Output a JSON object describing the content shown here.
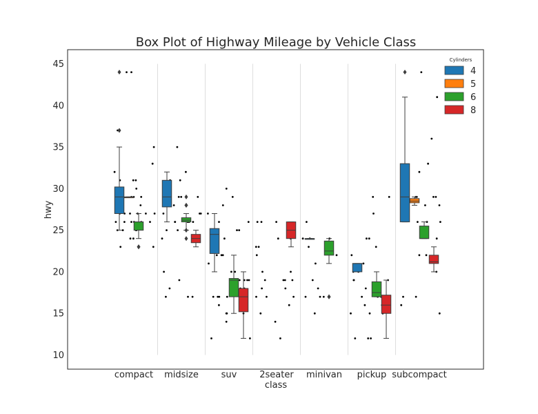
{
  "chart_data": {
    "type": "box",
    "title": "Box Plot of Highway Mileage by Vehicle Class",
    "xlabel": "class",
    "ylabel": "hwy",
    "ylim": [
      8.3,
      46.7
    ],
    "yticks": [
      10,
      15,
      20,
      25,
      30,
      35,
      40,
      45
    ],
    "categories": [
      "compact",
      "midsize",
      "suv",
      "2seater",
      "minivan",
      "pickup",
      "subcompact"
    ],
    "grid": "vertical separators between classes",
    "legend": {
      "title": "Cylinders",
      "placement": "top-right",
      "entries": [
        "4",
        "5",
        "6",
        "8"
      ]
    },
    "colors": {
      "4": "#1f77b4",
      "5": "#ff7f0e",
      "6": "#2ca02c",
      "8": "#d62728",
      "points": "#000000",
      "separator": "#dddddd",
      "frame": "#262626"
    },
    "boxes": [
      {
        "category": "compact",
        "cylinders": "4",
        "whisker_low": 25,
        "q1": 27,
        "median": 29,
        "q3": 30.2,
        "whisker_high": 35,
        "outliers": [
          37,
          44
        ]
      },
      {
        "category": "compact",
        "cylinders": "5",
        "whisker_low": 29,
        "q1": 29,
        "median": 29,
        "q3": 29,
        "whisker_high": 29,
        "outliers": []
      },
      {
        "category": "compact",
        "cylinders": "6",
        "whisker_low": 24,
        "q1": 25,
        "median": 26,
        "q3": 26,
        "whisker_high": 27,
        "outliers": [
          23,
          23
        ]
      },
      {
        "category": "midsize",
        "cylinders": "4",
        "whisker_low": 26,
        "q1": 27.8,
        "median": 29,
        "q3": 31,
        "whisker_high": 32,
        "outliers": []
      },
      {
        "category": "midsize",
        "cylinders": "6",
        "whisker_low": 25,
        "q1": 26,
        "median": 26.2,
        "q3": 26.5,
        "whisker_high": 27,
        "outliers": [
          29,
          28,
          28,
          25,
          24
        ]
      },
      {
        "category": "midsize",
        "cylinders": "8",
        "whisker_low": 23,
        "q1": 23.5,
        "median": 24,
        "q3": 24.5,
        "whisker_high": 25,
        "outliers": []
      },
      {
        "category": "suv",
        "cylinders": "4",
        "whisker_low": 20,
        "q1": 22.2,
        "median": 24.5,
        "q3": 25.2,
        "whisker_high": 27,
        "outliers": []
      },
      {
        "category": "suv",
        "cylinders": "6",
        "whisker_low": 15,
        "q1": 17,
        "median": 19,
        "q3": 19.2,
        "whisker_high": 22,
        "outliers": []
      },
      {
        "category": "suv",
        "cylinders": "8",
        "whisker_low": 12,
        "q1": 15.2,
        "median": 17,
        "q3": 18,
        "whisker_high": 20,
        "outliers": []
      },
      {
        "category": "2seater",
        "cylinders": "8",
        "whisker_low": 23,
        "q1": 24,
        "median": 25,
        "q3": 26,
        "whisker_high": 26,
        "outliers": []
      },
      {
        "category": "minivan",
        "cylinders": "4",
        "whisker_low": 24,
        "q1": 24,
        "median": 24,
        "q3": 24,
        "whisker_high": 24,
        "outliers": []
      },
      {
        "category": "minivan",
        "cylinders": "6",
        "whisker_low": 21,
        "q1": 22,
        "median": 22.5,
        "q3": 23.7,
        "whisker_high": 24,
        "outliers": [
          17,
          17
        ]
      },
      {
        "category": "pickup",
        "cylinders": "4",
        "whisker_low": 20,
        "q1": 20,
        "median": 21,
        "q3": 21,
        "whisker_high": 21,
        "outliers": []
      },
      {
        "category": "pickup",
        "cylinders": "6",
        "whisker_low": 17,
        "q1": 17,
        "median": 17.5,
        "q3": 18.8,
        "whisker_high": 20,
        "outliers": []
      },
      {
        "category": "pickup",
        "cylinders": "8",
        "whisker_low": 12,
        "q1": 15,
        "median": 16,
        "q3": 17.2,
        "whisker_high": 19,
        "outliers": []
      },
      {
        "category": "subcompact",
        "cylinders": "4",
        "whisker_low": 26,
        "q1": 26,
        "median": 29,
        "q3": 33,
        "whisker_high": 41,
        "outliers": [
          44
        ]
      },
      {
        "category": "subcompact",
        "cylinders": "5",
        "whisker_low": 28,
        "q1": 28.3,
        "median": 28.5,
        "q3": 28.8,
        "whisker_high": 29,
        "outliers": []
      },
      {
        "category": "subcompact",
        "cylinders": "6",
        "whisker_low": 24,
        "q1": 24,
        "median": 24,
        "q3": 25.5,
        "whisker_high": 26,
        "outliers": []
      },
      {
        "category": "subcompact",
        "cylinders": "8",
        "whisker_low": 20,
        "q1": 21,
        "median": 21.2,
        "q3": 22,
        "whisker_high": 23,
        "outliers": []
      }
    ],
    "points": [
      {
        "category": "compact",
        "values": [
          24,
          25,
          25,
          25,
          26,
          26,
          26,
          26,
          27,
          27,
          27,
          27,
          28,
          29,
          29,
          29,
          29,
          29,
          30,
          31,
          31,
          32,
          33,
          35,
          37,
          44,
          23,
          23,
          24,
          25,
          26,
          26,
          27,
          27,
          29,
          29,
          31,
          44
        ]
      },
      {
        "category": "midsize",
        "values": [
          25,
          26,
          26,
          26,
          27,
          27,
          28,
          29,
          31,
          31,
          32,
          35,
          17,
          17,
          17,
          18,
          19,
          20,
          24,
          25,
          26,
          26,
          27,
          28,
          29,
          29
        ]
      },
      {
        "category": "suv",
        "values": [
          14,
          15,
          15,
          15,
          16,
          17,
          17,
          17,
          17,
          18,
          18,
          19,
          19,
          19,
          19,
          20,
          20,
          21,
          22,
          22,
          22,
          24,
          25,
          25,
          26,
          26,
          27,
          28,
          29,
          30,
          12,
          12,
          17,
          17
        ]
      },
      {
        "category": "2seater",
        "values": [
          12,
          14,
          15,
          16,
          17,
          17,
          17,
          18,
          18,
          19,
          19,
          19,
          19,
          20,
          20,
          22,
          23,
          23,
          24,
          24,
          25,
          26,
          26,
          26
        ]
      },
      {
        "category": "minivan",
        "values": [
          15,
          17,
          17,
          18,
          19,
          21,
          22,
          23,
          24,
          24,
          24,
          26,
          17
        ]
      },
      {
        "category": "pickup",
        "values": [
          12,
          12,
          12,
          15,
          15,
          15,
          16,
          16,
          17,
          17,
          17,
          17,
          18,
          19,
          19,
          19,
          20,
          20,
          21,
          22,
          23,
          24,
          24,
          27,
          29,
          29
        ]
      },
      {
        "category": "subcompact",
        "values": [
          17,
          17,
          20,
          22,
          22,
          24,
          26,
          26,
          28,
          29,
          29,
          32,
          33,
          36,
          41,
          44,
          26,
          28,
          29,
          29,
          16,
          15
        ]
      }
    ]
  }
}
